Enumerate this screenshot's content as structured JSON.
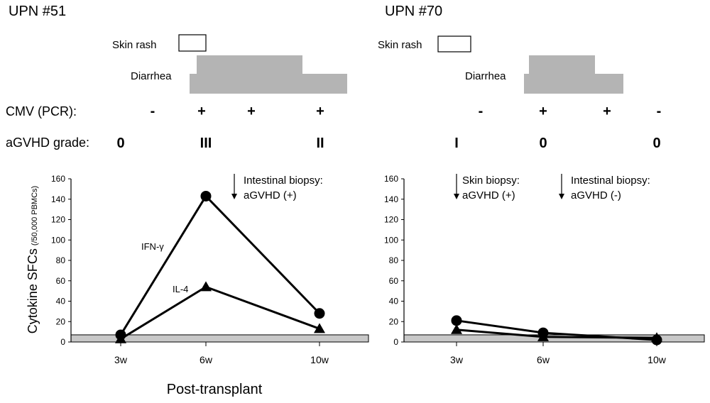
{
  "colors": {
    "symptom_fill": "#b4b4b4",
    "baseline_fill": "#c8c8c8",
    "line": "#000000",
    "background": "#ffffff"
  },
  "common": {
    "cmv_label": "CMV (PCR):",
    "agvhd_label": "aGVHD grade:",
    "y_label_main": "Cytokine SFCs",
    "y_label_sub": "(/50,000 PBMCs)",
    "x_label": "Post-transplant",
    "series_ifn": "IFN-γ",
    "series_il4": "IL-4"
  },
  "chart_data": [
    {
      "type": "line",
      "title": "UPN #51",
      "xlabel": "Post-transplant",
      "ylabel": "Cytokine SFCs (/50,000 PBMCs)",
      "ylim": [
        0,
        160
      ],
      "yticks": [
        "0",
        "20",
        "40",
        "60",
        "80",
        "100",
        "120",
        "140",
        "160"
      ],
      "x": [
        "3w",
        "6w",
        "10w"
      ],
      "series": [
        {
          "name": "IFN-γ",
          "marker": "circle",
          "values": [
            7,
            143,
            28
          ]
        },
        {
          "name": "IL-4",
          "marker": "triangle",
          "values": [
            3,
            54,
            13
          ]
        }
      ],
      "baseline_threshold": 7,
      "symptoms": {
        "skin_rash_label": "Skin rash",
        "diarrhea_label": "Diarrhea"
      },
      "cmv_pcr": [
        "-",
        "+",
        "+",
        "+"
      ],
      "agvhd_grades": [
        "0",
        "III",
        "II"
      ],
      "annotations": [
        {
          "line1": "Intestinal biopsy:",
          "line2": "aGVHD (+)"
        }
      ]
    },
    {
      "type": "line",
      "title": "UPN #70",
      "xlabel": "Post-transplant",
      "ylabel": "Cytokine SFCs (/50,000 PBMCs)",
      "ylim": [
        0,
        160
      ],
      "yticks": [
        "0",
        "20",
        "40",
        "60",
        "80",
        "100",
        "120",
        "140",
        "160"
      ],
      "x": [
        "3w",
        "6w",
        "10w"
      ],
      "series": [
        {
          "name": "IFN-γ",
          "marker": "circle",
          "values": [
            21,
            9,
            2
          ]
        },
        {
          "name": "IL-4",
          "marker": "triangle",
          "values": [
            12,
            5,
            4
          ]
        }
      ],
      "baseline_threshold": 7,
      "symptoms": {
        "skin_rash_label": "Skin rash",
        "diarrhea_label": "Diarrhea"
      },
      "cmv_pcr": [
        "-",
        "+",
        "+",
        "-"
      ],
      "agvhd_grades": [
        "I",
        "0",
        "0"
      ],
      "annotations": [
        {
          "line1": "Skin biopsy:",
          "line2": "aGVHD (+)"
        },
        {
          "line1": "Intestinal biopsy:",
          "line2": "aGVHD (-)"
        }
      ]
    }
  ]
}
